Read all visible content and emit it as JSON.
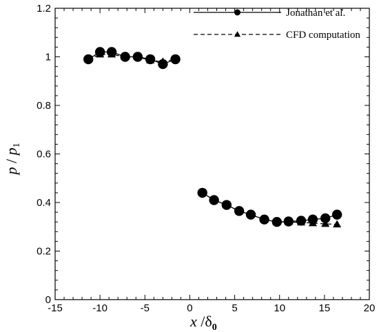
{
  "chart_data": {
    "type": "line",
    "title": "",
    "xlabel": "x / δ0",
    "xlabel_parts": {
      "var": "x",
      "slash": " /",
      "sym": "δ",
      "sub": "0"
    },
    "ylabel": "p / p1",
    "ylabel_parts": {
      "var": "p",
      "slash": " / ",
      "var2": "p",
      "sub": "1"
    },
    "xlim": [
      -15,
      20
    ],
    "ylim": [
      0,
      1.2
    ],
    "xticks": [
      -15,
      -10,
      -5,
      0,
      5,
      10,
      15,
      20
    ],
    "xtick_labels": [
      "-15",
      "-10",
      "-5",
      "0",
      "5",
      "10",
      "15",
      "20"
    ],
    "yticks": [
      0,
      0.2,
      0.4,
      0.6,
      0.8,
      1.0,
      1.2
    ],
    "ytick_labels": [
      "0",
      "0.2",
      "0.4",
      "0.6",
      "0.8",
      "1",
      "1.2"
    ],
    "grid": false,
    "legend_position": "top-right",
    "series": [
      {
        "name": "Jonathan et al.",
        "marker": "circle",
        "line": "solid",
        "segments": [
          [
            [
              -11.3,
              0.99
            ],
            [
              -10,
              1.02
            ],
            [
              -8.7,
              1.02
            ],
            [
              -7.2,
              1.0
            ],
            [
              -5.8,
              1.0
            ],
            [
              -4.4,
              0.99
            ],
            [
              -3.0,
              0.97
            ],
            [
              -1.6,
              0.99
            ]
          ],
          [
            [
              1.4,
              0.44
            ],
            [
              2.7,
              0.41
            ],
            [
              4.1,
              0.39
            ],
            [
              5.5,
              0.365
            ],
            [
              6.8,
              0.35
            ],
            [
              8.3,
              0.33
            ],
            [
              9.7,
              0.32
            ],
            [
              11.0,
              0.322
            ],
            [
              12.4,
              0.325
            ],
            [
              13.7,
              0.33
            ],
            [
              15.1,
              0.335
            ],
            [
              16.4,
              0.35
            ]
          ]
        ]
      },
      {
        "name": "CFD computation",
        "marker": "triangle",
        "line": "dashed",
        "segments": [
          [
            [
              -11.3,
              0.99
            ],
            [
              -10,
              1.01
            ],
            [
              -8.7,
              1.01
            ],
            [
              -7.2,
              1.0
            ],
            [
              -5.8,
              1.0
            ],
            [
              -4.4,
              0.985
            ],
            [
              -3.0,
              0.98
            ],
            [
              -1.6,
              0.99
            ]
          ],
          [
            [
              1.4,
              0.44
            ],
            [
              2.7,
              0.41
            ],
            [
              4.1,
              0.39
            ],
            [
              5.5,
              0.365
            ],
            [
              6.8,
              0.35
            ],
            [
              8.3,
              0.33
            ],
            [
              9.7,
              0.32
            ],
            [
              11.0,
              0.32
            ],
            [
              12.4,
              0.318
            ],
            [
              13.7,
              0.315
            ],
            [
              15.1,
              0.312
            ],
            [
              16.4,
              0.31
            ]
          ]
        ]
      }
    ]
  }
}
